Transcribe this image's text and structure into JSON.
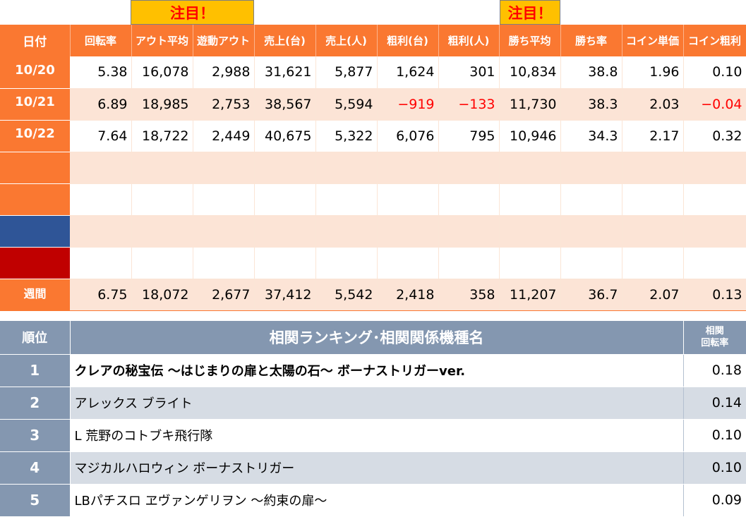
{
  "attention": [
    "注目！",
    "注目！"
  ],
  "stats": {
    "headers": [
      "日付",
      "回転率",
      "アウト平均",
      "遊動アウト",
      "売上(台)",
      "売上(人)",
      "粗利(台)",
      "粗利(人)",
      "勝ち平均",
      "勝ち率",
      "コイン単価",
      "コイン粗利"
    ],
    "rows": [
      {
        "date": "10/20",
        "values": [
          "5.38",
          "16,078",
          "2,988",
          "31,621",
          "5,877",
          "1,624",
          "301",
          "10,834",
          "38.8",
          "1.96",
          "0.10"
        ]
      },
      {
        "date": "10/21",
        "values": [
          "6.89",
          "18,985",
          "2,753",
          "38,567",
          "5,594",
          "−919",
          "−133",
          "11,730",
          "38.3",
          "2.03",
          "−0.04"
        ]
      },
      {
        "date": "10/22",
        "values": [
          "7.64",
          "18,722",
          "2,449",
          "40,675",
          "5,322",
          "6,076",
          "795",
          "10,946",
          "34.3",
          "2.17",
          "0.32"
        ]
      }
    ],
    "empty_row_colors": [
      "#fa7831",
      "#fa7831",
      "#2f5597",
      "#c00000"
    ],
    "weekly": {
      "label": "週間",
      "values": [
        "6.75",
        "18,072",
        "2,677",
        "37,412",
        "5,542",
        "2,418",
        "358",
        "11,207",
        "36.7",
        "2.07",
        "0.13"
      ]
    },
    "negative_color": "#ff0000"
  },
  "ranking": {
    "header_rank": "順位",
    "header_title": "相関ランキング･相関関係機種名",
    "header_corr_line1": "相関",
    "header_corr_line2": "回転率",
    "items": [
      {
        "rank": "1",
        "name": "クレアの秘宝伝 ～はじまりの扉と太陽の石～ ボーナストリガーver.",
        "value": "0.18"
      },
      {
        "rank": "2",
        "name": "アレックス ブライト",
        "value": "0.14"
      },
      {
        "rank": "3",
        "name": "L 荒野のコトブキ飛行隊",
        "value": "0.10"
      },
      {
        "rank": "4",
        "name": "マジカルハロウィン ボーナストリガー",
        "value": "0.10"
      },
      {
        "rank": "5",
        "name": "LBパチスロ ヱヴァンゲリヲン ～約束の扉～",
        "value": "0.09"
      }
    ]
  },
  "colors": {
    "orange": "#fa7831",
    "light_orange": "#fce4d6",
    "slate": "#8497b0",
    "light_slate": "#d6dce4",
    "attention_bg": "#ffc000"
  }
}
